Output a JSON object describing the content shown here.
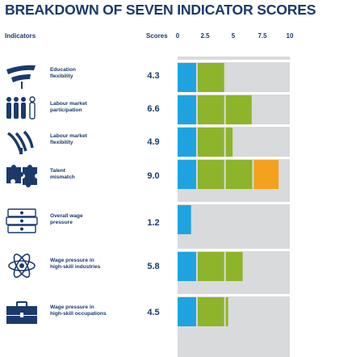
{
  "title": "BREAKDOWN OF SEVEN INDICATOR SCORES",
  "headers": {
    "indicators": "Indicators",
    "scores": "Scores"
  },
  "axis": {
    "ticks": [
      "0",
      "2.5",
      "5",
      "7.5",
      "10"
    ]
  },
  "colors": {
    "text": "#1b3a6b",
    "track": "#d9dadb",
    "blue": "#1fa3e0",
    "green": "#8db42a",
    "orange": "#f4a21d",
    "pink": "#d9288a"
  },
  "rows": [
    {
      "label": [
        "Education",
        "flexibility"
      ],
      "score": "4.3",
      "icon": "signal-arrows-icon"
    },
    {
      "label": [
        "Labour market",
        "participation"
      ],
      "score": "6.6",
      "icon": "people-group-icon"
    },
    {
      "label": [
        "Labour market",
        "flexibility"
      ],
      "score": "4.9",
      "icon": "wifi-signal-icon"
    },
    {
      "label": [
        "Talent",
        "mismatch"
      ],
      "score": "9.0",
      "icon": "puzzle-pieces-icon"
    },
    {
      "label": [
        "Overall wage",
        "pressure"
      ],
      "score": "1.2",
      "icon": "money-stack-icon"
    },
    {
      "label": [
        "Wage pressure in",
        "high-skill industries"
      ],
      "score": "5.8",
      "icon": "atom-icon"
    },
    {
      "label": [
        "Wage pressure in",
        "high-skill occupations"
      ],
      "score": "4.5",
      "icon": "briefcase-icon"
    }
  ],
  "chart_data": {
    "type": "bar",
    "title": "BREAKDOWN OF SEVEN INDICATOR SCORES",
    "orientation": "horizontal",
    "categories": [
      "Education flexibility",
      "Labour market participation",
      "Labour market flexibility",
      "Talent mismatch",
      "Overall wage pressure",
      "Wage pressure in high-skill industries",
      "Wage pressure in high-skill occupations"
    ],
    "values": [
      4.3,
      6.6,
      4.9,
      9.0,
      1.2,
      5.8,
      4.5
    ],
    "xlim": [
      0,
      10
    ],
    "xticks": [
      "0",
      "2.5",
      "5",
      "7.5",
      "10"
    ],
    "segment_colors_by_band": [
      "#1fa3e0",
      "#8db42a",
      "#8db42a",
      "#f4a21d",
      "#d9288a"
    ],
    "grid": false,
    "legend": "none"
  }
}
